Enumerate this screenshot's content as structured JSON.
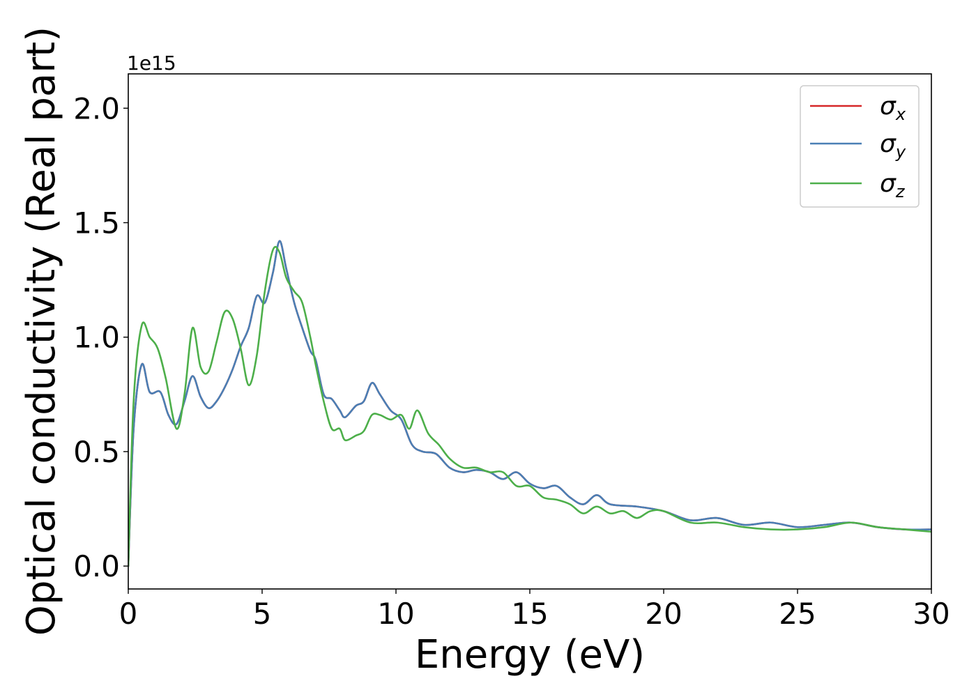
{
  "chart_data": {
    "type": "line",
    "title": "",
    "xlabel": "Energy (eV)",
    "ylabel": "Optical conductivity (Real part)",
    "y_offset_text": "1e15",
    "xlim": [
      0,
      30
    ],
    "ylim": [
      -0.1,
      2.15
    ],
    "xticks": [
      0,
      5,
      10,
      15,
      20,
      25,
      30
    ],
    "xtick_labels": [
      "0",
      "5",
      "10",
      "15",
      "20",
      "25",
      "30"
    ],
    "yticks": [
      0.0,
      0.5,
      1.0,
      1.5,
      2.0
    ],
    "ytick_labels": [
      "0.0",
      "0.5",
      "1.0",
      "1.5",
      "2.0"
    ],
    "grid": false,
    "legend_position": "top-right",
    "series": [
      {
        "name": "σx",
        "name_base": "σ",
        "name_sub": "x",
        "color": "#d62728",
        "x": [
          0,
          0.2,
          0.5,
          0.8,
          1.2,
          1.5,
          1.8,
          2.1,
          2.4,
          2.7,
          3.0,
          3.3,
          3.6,
          3.9,
          4.2,
          4.5,
          4.8,
          5.1,
          5.4,
          5.65,
          5.9,
          6.2,
          6.5,
          6.8,
          7.0,
          7.3,
          7.6,
          7.9,
          8.1,
          8.5,
          8.8,
          9.1,
          9.4,
          9.8,
          10.2,
          10.6,
          11.0,
          11.5,
          12.0,
          12.5,
          13.0,
          13.5,
          14.0,
          14.5,
          15.0,
          15.5,
          16.0,
          16.5,
          17.0,
          17.5,
          18.0,
          19.0,
          20.0,
          21.0,
          22.0,
          23.0,
          24.0,
          25.0,
          26.0,
          27.0,
          28.0,
          29.0,
          30.0
        ],
        "y": [
          0.0,
          0.6,
          0.88,
          0.76,
          0.76,
          0.66,
          0.62,
          0.72,
          0.83,
          0.74,
          0.69,
          0.72,
          0.78,
          0.86,
          0.96,
          1.04,
          1.18,
          1.15,
          1.28,
          1.42,
          1.3,
          1.15,
          1.04,
          0.94,
          0.9,
          0.75,
          0.73,
          0.68,
          0.65,
          0.7,
          0.72,
          0.8,
          0.75,
          0.68,
          0.64,
          0.53,
          0.5,
          0.49,
          0.43,
          0.41,
          0.42,
          0.41,
          0.38,
          0.41,
          0.36,
          0.34,
          0.35,
          0.3,
          0.27,
          0.31,
          0.27,
          0.26,
          0.24,
          0.2,
          0.21,
          0.18,
          0.19,
          0.17,
          0.18,
          0.19,
          0.17,
          0.16,
          0.16
        ]
      },
      {
        "name": "σy",
        "name_base": "σ",
        "name_sub": "y",
        "color": "#4a7fb5",
        "x": [
          0,
          0.2,
          0.5,
          0.8,
          1.2,
          1.5,
          1.8,
          2.1,
          2.4,
          2.7,
          3.0,
          3.3,
          3.6,
          3.9,
          4.2,
          4.5,
          4.8,
          5.1,
          5.4,
          5.65,
          5.9,
          6.2,
          6.5,
          6.8,
          7.0,
          7.3,
          7.6,
          7.9,
          8.1,
          8.5,
          8.8,
          9.1,
          9.4,
          9.8,
          10.2,
          10.6,
          11.0,
          11.5,
          12.0,
          12.5,
          13.0,
          13.5,
          14.0,
          14.5,
          15.0,
          15.5,
          16.0,
          16.5,
          17.0,
          17.5,
          18.0,
          19.0,
          20.0,
          21.0,
          22.0,
          23.0,
          24.0,
          25.0,
          26.0,
          27.0,
          28.0,
          29.0,
          30.0
        ],
        "y": [
          0.0,
          0.6,
          0.88,
          0.76,
          0.76,
          0.66,
          0.62,
          0.72,
          0.83,
          0.74,
          0.69,
          0.72,
          0.78,
          0.86,
          0.96,
          1.04,
          1.18,
          1.15,
          1.28,
          1.42,
          1.3,
          1.15,
          1.04,
          0.94,
          0.9,
          0.75,
          0.73,
          0.68,
          0.65,
          0.7,
          0.72,
          0.8,
          0.75,
          0.68,
          0.64,
          0.53,
          0.5,
          0.49,
          0.43,
          0.41,
          0.42,
          0.41,
          0.38,
          0.41,
          0.36,
          0.34,
          0.35,
          0.3,
          0.27,
          0.31,
          0.27,
          0.26,
          0.24,
          0.2,
          0.21,
          0.18,
          0.19,
          0.17,
          0.18,
          0.19,
          0.17,
          0.16,
          0.16
        ]
      },
      {
        "name": "σz",
        "name_base": "σ",
        "name_sub": "z",
        "color": "#4daf4a",
        "x": [
          0,
          0.2,
          0.5,
          0.8,
          1.1,
          1.4,
          1.8,
          2.1,
          2.4,
          2.7,
          3.0,
          3.3,
          3.6,
          3.9,
          4.2,
          4.5,
          4.8,
          5.1,
          5.4,
          5.65,
          5.9,
          6.2,
          6.5,
          6.8,
          7.0,
          7.3,
          7.6,
          7.9,
          8.1,
          8.5,
          8.8,
          9.1,
          9.4,
          9.8,
          10.2,
          10.5,
          10.8,
          11.2,
          11.6,
          12.0,
          12.5,
          13.0,
          13.5,
          14.0,
          14.5,
          15.0,
          15.5,
          16.0,
          16.5,
          17.0,
          17.5,
          18.0,
          18.5,
          19.0,
          19.5,
          20.0,
          21.0,
          22.0,
          23.0,
          24.0,
          25.0,
          26.0,
          27.0,
          28.0,
          29.0,
          30.0
        ],
        "y": [
          0.0,
          0.72,
          1.05,
          1.0,
          0.95,
          0.82,
          0.6,
          0.75,
          1.04,
          0.87,
          0.85,
          0.98,
          1.11,
          1.08,
          0.95,
          0.79,
          0.92,
          1.2,
          1.38,
          1.37,
          1.26,
          1.2,
          1.15,
          1.0,
          0.88,
          0.72,
          0.6,
          0.6,
          0.55,
          0.57,
          0.59,
          0.66,
          0.66,
          0.64,
          0.66,
          0.6,
          0.68,
          0.58,
          0.53,
          0.47,
          0.43,
          0.43,
          0.41,
          0.41,
          0.35,
          0.35,
          0.3,
          0.29,
          0.27,
          0.23,
          0.26,
          0.23,
          0.24,
          0.21,
          0.24,
          0.24,
          0.19,
          0.19,
          0.17,
          0.16,
          0.16,
          0.17,
          0.19,
          0.17,
          0.16,
          0.15
        ]
      }
    ]
  }
}
